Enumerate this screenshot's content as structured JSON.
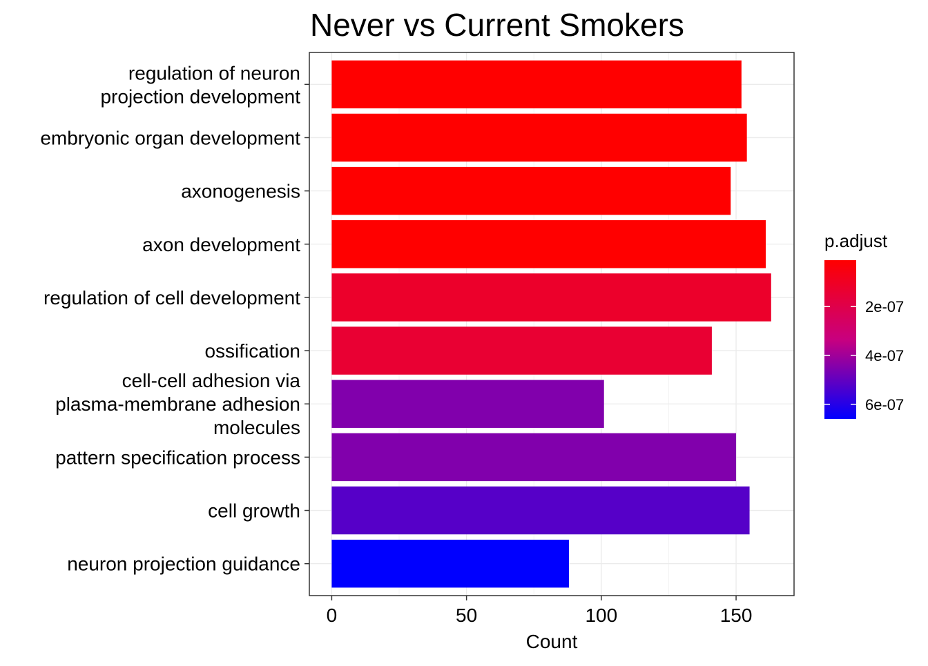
{
  "chart_data": {
    "type": "bar",
    "orientation": "horizontal",
    "title": "Never vs Current Smokers",
    "xlabel": "Count",
    "ylabel": "",
    "xlim": [
      -8.3,
      171.5
    ],
    "xticks": [
      0,
      50,
      100,
      150
    ],
    "grid": true,
    "categories": [
      "regulation of neuron\nprojection development",
      "embryonic organ development",
      "axonogenesis",
      "axon development",
      "regulation of cell development",
      "ossification",
      "cell-cell adhesion via\nplasma-membrane adhesion\nmolecules",
      "pattern specification process",
      "cell growth",
      "neuron projection guidance"
    ],
    "values": [
      152,
      154,
      148,
      161,
      163,
      141,
      101,
      150,
      155,
      88
    ],
    "p_adjust": [
      1e-08,
      1e-08,
      1e-08,
      1e-08,
      1.2e-07,
      1.4e-07,
      4.5e-07,
      4.5e-07,
      5.2e-07,
      6.6e-07
    ],
    "legend": {
      "title": "p.adjust",
      "position": "right",
      "ticks": [
        "2e-07",
        "4e-07",
        "6e-07"
      ],
      "tick_values": [
        2e-07,
        4e-07,
        6e-07
      ],
      "range": [
        1e-08,
        6.6e-07
      ],
      "color_low": "#FF0000",
      "color_high": "#0000FF"
    }
  }
}
